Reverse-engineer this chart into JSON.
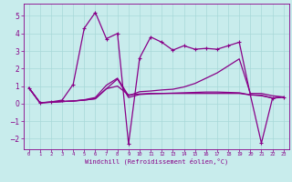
{
  "background_color": "#c8ecec",
  "grid_color": "#a8d8d8",
  "line_color": "#880088",
  "xlabel": "Windchill (Refroidissement éolien,°C)",
  "xlim": [
    -0.5,
    23.5
  ],
  "ylim": [
    -2.6,
    5.7
  ],
  "yticks": [
    -2,
    -1,
    0,
    1,
    2,
    3,
    4,
    5
  ],
  "xticks": [
    0,
    1,
    2,
    3,
    4,
    5,
    6,
    7,
    8,
    9,
    10,
    11,
    12,
    13,
    14,
    15,
    16,
    17,
    18,
    19,
    20,
    21,
    22,
    23
  ],
  "series": [
    {
      "y": [
        0.9,
        0.05,
        0.1,
        0.2,
        1.1,
        4.3,
        5.2,
        3.7,
        4.0,
        -2.3,
        2.6,
        3.8,
        3.5,
        3.05,
        3.3,
        3.1,
        3.15,
        3.1,
        3.3,
        3.5,
        0.5,
        -2.25,
        0.3,
        0.38
      ],
      "marker": true,
      "lw": 0.9
    },
    {
      "y": [
        0.9,
        0.05,
        0.08,
        0.12,
        0.15,
        0.2,
        0.28,
        0.85,
        1.0,
        0.5,
        0.55,
        0.58,
        0.58,
        0.58,
        0.58,
        0.58,
        0.58,
        0.58,
        0.58,
        0.58,
        0.5,
        0.45,
        0.32,
        0.38
      ],
      "marker": false,
      "lw": 0.9
    },
    {
      "y": [
        0.9,
        0.05,
        0.08,
        0.12,
        0.15,
        0.2,
        0.28,
        0.85,
        1.4,
        0.35,
        0.52,
        0.56,
        0.58,
        0.6,
        0.62,
        0.64,
        0.66,
        0.66,
        0.64,
        0.62,
        0.5,
        0.48,
        0.32,
        0.38
      ],
      "marker": false,
      "lw": 0.9
    },
    {
      "y": [
        0.9,
        0.05,
        0.08,
        0.12,
        0.15,
        0.22,
        0.35,
        1.05,
        1.45,
        0.45,
        0.68,
        0.72,
        0.78,
        0.82,
        0.95,
        1.15,
        1.45,
        1.75,
        2.15,
        2.55,
        0.58,
        0.58,
        0.45,
        0.38
      ],
      "marker": false,
      "lw": 0.9
    }
  ]
}
